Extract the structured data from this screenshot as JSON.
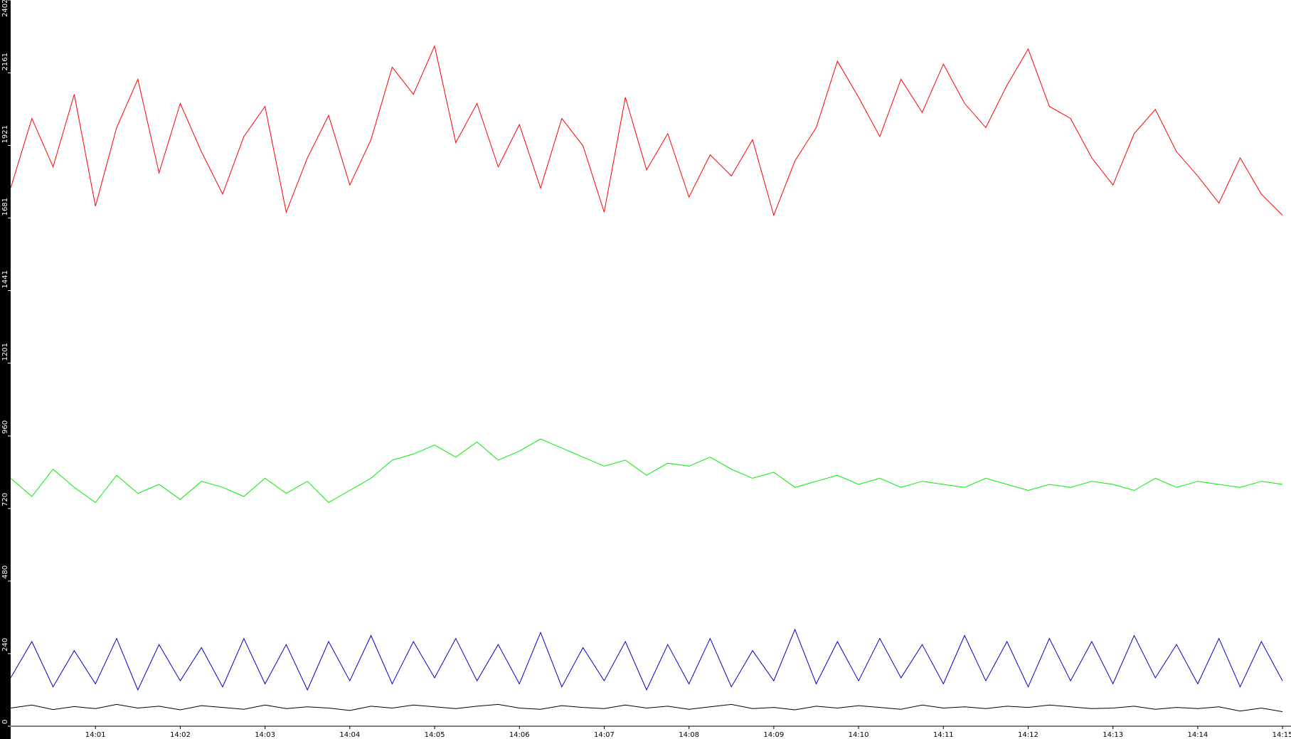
{
  "chart_data": {
    "type": "line",
    "x": [
      840,
      840.25,
      840.5,
      840.75,
      841,
      841.25,
      841.5,
      841.75,
      842,
      842.25,
      842.5,
      842.75,
      843,
      843.25,
      843.5,
      843.75,
      844,
      844.25,
      844.5,
      844.75,
      845,
      845.25,
      845.5,
      845.75,
      846,
      846.25,
      846.5,
      846.75,
      847,
      847.25,
      847.5,
      847.75,
      848,
      848.25,
      848.5,
      848.75,
      849,
      849.25,
      849.5,
      849.75,
      850,
      850.25,
      850.5,
      850.75,
      851,
      851.25,
      851.5,
      851.75,
      852,
      852.25,
      852.5,
      852.75,
      853,
      853.25,
      853.5,
      853.75,
      854,
      854.25,
      854.5,
      854.75,
      855
    ],
    "series": [
      {
        "color": "#ff0000",
        "values": [
          1780,
          2010,
          1850,
          2090,
          1720,
          1980,
          2140,
          1830,
          2060,
          1900,
          1760,
          1950,
          2050,
          1700,
          1880,
          2020,
          1790,
          1940,
          2180,
          2090,
          2250,
          1930,
          2060,
          1850,
          1990,
          1780,
          2010,
          1920,
          1700,
          2080,
          1840,
          1960,
          1750,
          1890,
          1820,
          1940,
          1690,
          1870,
          1980,
          2200,
          2080,
          1950,
          2140,
          2030,
          2190,
          2060,
          1980,
          2120,
          2240,
          2050,
          2010,
          1880,
          1790,
          1960,
          2040,
          1900,
          1820,
          1730,
          1880,
          1760,
          1690
        ]
      },
      {
        "color": "#00ee00",
        "values": [
          820,
          760,
          850,
          790,
          740,
          830,
          770,
          800,
          750,
          810,
          790,
          760,
          820,
          770,
          810,
          740,
          780,
          820,
          880,
          900,
          930,
          890,
          940,
          880,
          910,
          950,
          920,
          890,
          860,
          880,
          830,
          870,
          860,
          890,
          850,
          820,
          840,
          790,
          810,
          830,
          800,
          820,
          790,
          810,
          800,
          790,
          820,
          800,
          780,
          800,
          790,
          810,
          800,
          780,
          820,
          790,
          810,
          800,
          790,
          810,
          800
        ]
      },
      {
        "color": "#0000cc",
        "values": [
          160,
          280,
          130,
          250,
          140,
          290,
          120,
          270,
          150,
          260,
          130,
          290,
          140,
          270,
          120,
          280,
          150,
          300,
          140,
          280,
          160,
          290,
          150,
          270,
          140,
          310,
          130,
          260,
          150,
          280,
          120,
          270,
          140,
          290,
          130,
          250,
          150,
          320,
          140,
          280,
          150,
          290,
          160,
          270,
          140,
          300,
          150,
          280,
          130,
          290,
          150,
          280,
          140,
          300,
          160,
          270,
          140,
          290,
          130,
          280,
          150
        ]
      },
      {
        "color": "#000000",
        "values": [
          60,
          70,
          55,
          65,
          58,
          72,
          60,
          66,
          54,
          68,
          62,
          56,
          70,
          58,
          64,
          60,
          52,
          66,
          60,
          70,
          64,
          58,
          66,
          72,
          60,
          56,
          68,
          62,
          58,
          70,
          60,
          66,
          56,
          64,
          72,
          58,
          62,
          54,
          66,
          60,
          68,
          62,
          56,
          70,
          60,
          64,
          58,
          66,
          62,
          70,
          64,
          58,
          60,
          66,
          56,
          62,
          58,
          64,
          50,
          60,
          48
        ]
      }
    ],
    "xlim": [
      840,
      855.1
    ],
    "ylim": [
      0,
      2402
    ],
    "xticks": [
      {
        "value": 841,
        "label": "14:01"
      },
      {
        "value": 842,
        "label": "14:02"
      },
      {
        "value": 843,
        "label": "14:03"
      },
      {
        "value": 844,
        "label": "14:04"
      },
      {
        "value": 845,
        "label": "14:05"
      },
      {
        "value": 846,
        "label": "14:06"
      },
      {
        "value": 847,
        "label": "14:07"
      },
      {
        "value": 848,
        "label": "14:08"
      },
      {
        "value": 849,
        "label": "14:09"
      },
      {
        "value": 850,
        "label": "14:10"
      },
      {
        "value": 851,
        "label": "14:11"
      },
      {
        "value": 852,
        "label": "14:12"
      },
      {
        "value": 853,
        "label": "14:13"
      },
      {
        "value": 854,
        "label": "14:14"
      },
      {
        "value": 855,
        "label": "14:15"
      }
    ],
    "yticks": [
      0,
      240,
      480,
      720,
      960,
      1201,
      1441,
      1681,
      1921,
      2161,
      2402
    ]
  }
}
